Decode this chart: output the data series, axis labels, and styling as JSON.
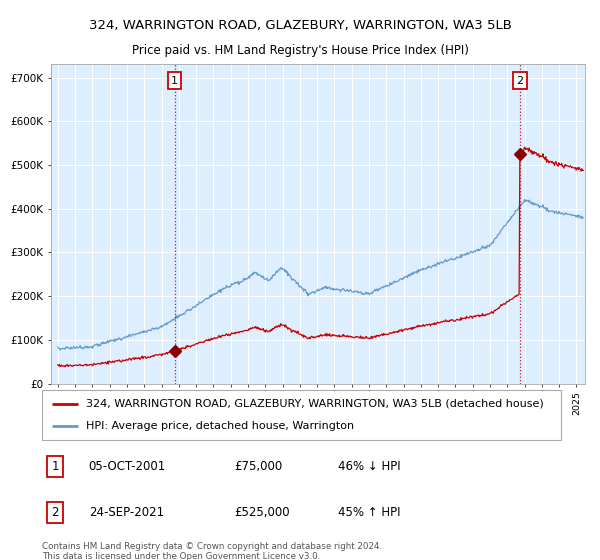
{
  "title": "324, WARRINGTON ROAD, GLAZEBURY, WARRINGTON, WA3 5LB",
  "subtitle": "Price paid vs. HM Land Registry's House Price Index (HPI)",
  "plot_bg_color": "#ddeeff",
  "hpi_color": "#6699cc",
  "price_color": "#cc0000",
  "marker_color": "#880000",
  "vline_color": "#cc0000",
  "ylim": [
    0,
    730000
  ],
  "yticks": [
    0,
    100000,
    200000,
    300000,
    400000,
    500000,
    600000,
    700000
  ],
  "ytick_labels": [
    "£0",
    "£100K",
    "£200K",
    "£300K",
    "£400K",
    "£500K",
    "£600K",
    "£700K"
  ],
  "xlim_start": 1994.6,
  "xlim_end": 2025.5,
  "sale1_year": 2001.76,
  "sale1_price": 75000,
  "sale2_year": 2021.73,
  "sale2_price": 525000,
  "legend_line1": "324, WARRINGTON ROAD, GLAZEBURY, WARRINGTON, WA3 5LB (detached house)",
  "legend_line2": "HPI: Average price, detached house, Warrington",
  "annotation1_label": "1",
  "annotation1_date": "05-OCT-2001",
  "annotation1_price": "£75,000",
  "annotation1_hpi": "46% ↓ HPI",
  "annotation2_label": "2",
  "annotation2_date": "24-SEP-2021",
  "annotation2_price": "£525,000",
  "annotation2_hpi": "45% ↑ HPI",
  "copyright_text": "Contains HM Land Registry data © Crown copyright and database right 2024.\nThis data is licensed under the Open Government Licence v3.0.",
  "title_fontsize": 9.5,
  "subtitle_fontsize": 8.5,
  "tick_fontsize": 7.5,
  "legend_fontsize": 8
}
